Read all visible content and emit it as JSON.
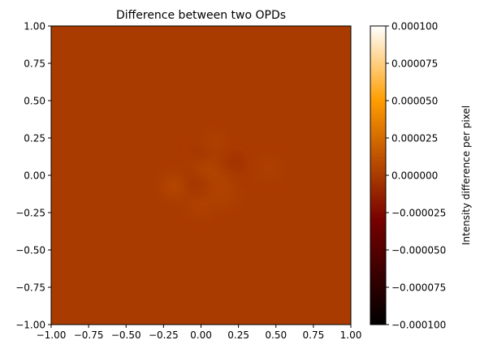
{
  "chart_data": {
    "type": "heatmap",
    "title": "Difference between two OPDs",
    "xlim": [
      -1.0,
      1.0
    ],
    "ylim": [
      -1.0,
      1.0
    ],
    "x_ticks": [
      -1.0,
      -0.75,
      -0.5,
      -0.25,
      0.0,
      0.25,
      0.5,
      0.75,
      1.0
    ],
    "x_tick_labels": [
      "−1.00",
      "−0.75",
      "−0.50",
      "−0.25",
      "0.00",
      "0.25",
      "0.50",
      "0.75",
      "1.00"
    ],
    "y_ticks": [
      1.0,
      0.75,
      0.5,
      0.25,
      0.0,
      -0.25,
      -0.5,
      -0.75,
      -1.0
    ],
    "y_tick_labels": [
      "1.00",
      "0.75",
      "0.50",
      "0.25",
      "0.00",
      "−0.25",
      "−0.50",
      "−0.75",
      "−1.00"
    ],
    "background_value": 0.0,
    "colormap": "gist_heat",
    "colorbar": {
      "label": "Intensity difference per pixel",
      "vmin": -0.0001,
      "vmax": 0.0001,
      "ticks": [
        0.0001,
        7.5e-05,
        5e-05,
        2.5e-05,
        0.0,
        -2.5e-05,
        -5e-05,
        -7.5e-05,
        -0.0001
      ],
      "tick_labels": [
        "0.000100",
        "0.000075",
        "0.000050",
        "0.000025",
        "0.000000",
        "−0.000025",
        "−0.000050",
        "−0.000075",
        "−0.000100"
      ]
    },
    "features": [
      {
        "x": -0.17,
        "y": -0.07,
        "value": 9e-06
      },
      {
        "x": 0.02,
        "y": 0.05,
        "value": 7e-06
      },
      {
        "x": 0.12,
        "y": 0.0,
        "value": 6e-06
      },
      {
        "x": 0.07,
        "y": 0.2,
        "value": 5e-06
      },
      {
        "x": 0.15,
        "y": -0.13,
        "value": 5e-06
      },
      {
        "x": 0.0,
        "y": -0.2,
        "value": 4e-06
      },
      {
        "x": 0.45,
        "y": 0.05,
        "value": 3e-06
      },
      {
        "x": -0.05,
        "y": -0.05,
        "value": -5e-06
      },
      {
        "x": 0.22,
        "y": 0.08,
        "value": -6e-06
      },
      {
        "x": 0.0,
        "y": 0.15,
        "value": -4e-06
      }
    ]
  }
}
